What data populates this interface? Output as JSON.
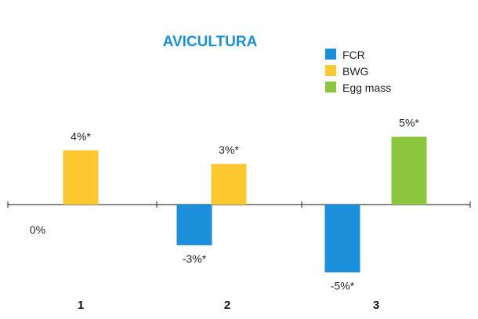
{
  "chart_data": {
    "type": "bar",
    "title": "AVICULTURA",
    "categories": [
      "1",
      "2",
      "3"
    ],
    "series": [
      {
        "name": "FCR",
        "color": "#1b8fd9",
        "values": [
          0,
          -3,
          -5
        ],
        "labels": [
          "0%",
          "-3%*",
          "-5%*"
        ]
      },
      {
        "name": "BWG",
        "color": "#fdc82f",
        "values": [
          4,
          3,
          null
        ],
        "labels": [
          "4%*",
          "3%*",
          null
        ]
      },
      {
        "name": "Egg mass",
        "color": "#8cc63f",
        "values": [
          null,
          null,
          5
        ],
        "labels": [
          null,
          null,
          "5%*"
        ]
      }
    ],
    "ylim": [
      -5,
      5
    ],
    "grid": false,
    "legend_position": "top-right",
    "title_color": "#1b8fd9"
  }
}
